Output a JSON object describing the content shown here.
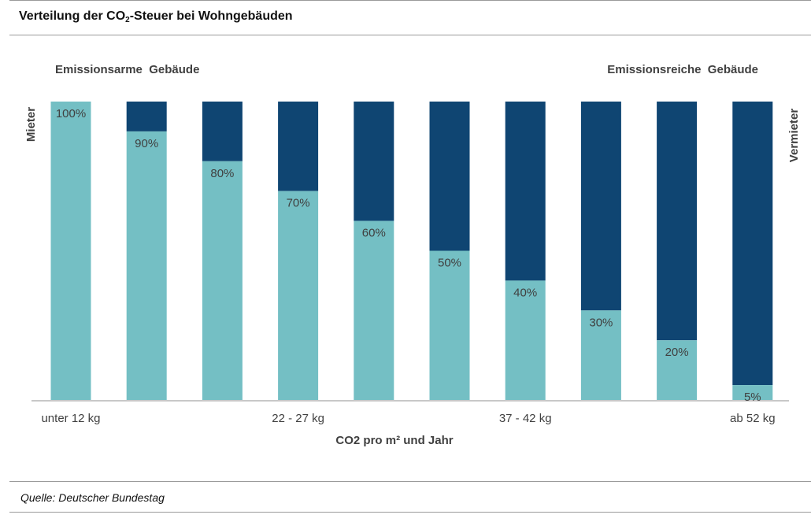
{
  "header": {
    "title_prefix": "Verteilung der CO",
    "title_sub": "2",
    "title_suffix": "-Steuer bei Wohngebäuden"
  },
  "footer": {
    "source": "Quelle: Deutscher Bundestag"
  },
  "colors": {
    "mieter": "#74bfc4",
    "vermieter": "#0f4572",
    "axis": "#c8c8c8",
    "text": "#404040"
  },
  "chart_data": {
    "type": "bar",
    "stacked": true,
    "categories": [
      "unter 12 kg",
      "",
      "",
      "22 - 27 kg",
      "",
      "",
      "37 - 42 kg",
      "",
      "",
      "ab 52 kg"
    ],
    "series": [
      {
        "name": "Mieter",
        "values": [
          100,
          90,
          80,
          70,
          60,
          50,
          40,
          30,
          20,
          5
        ]
      },
      {
        "name": "Vermieter",
        "values": [
          0,
          10,
          20,
          30,
          40,
          50,
          60,
          70,
          80,
          95
        ]
      }
    ],
    "data_labels": [
      "100%",
      "90%",
      "80%",
      "70%",
      "60%",
      "50%",
      "40%",
      "30%",
      "20%",
      "5%"
    ],
    "xlabel": "CO2 pro m² und Jahr",
    "ylim": [
      0,
      100
    ],
    "annotations": {
      "left": "Emissionsarme  Gebäude",
      "right": "Emissionsreiche  Gebäude"
    },
    "grid": false
  }
}
